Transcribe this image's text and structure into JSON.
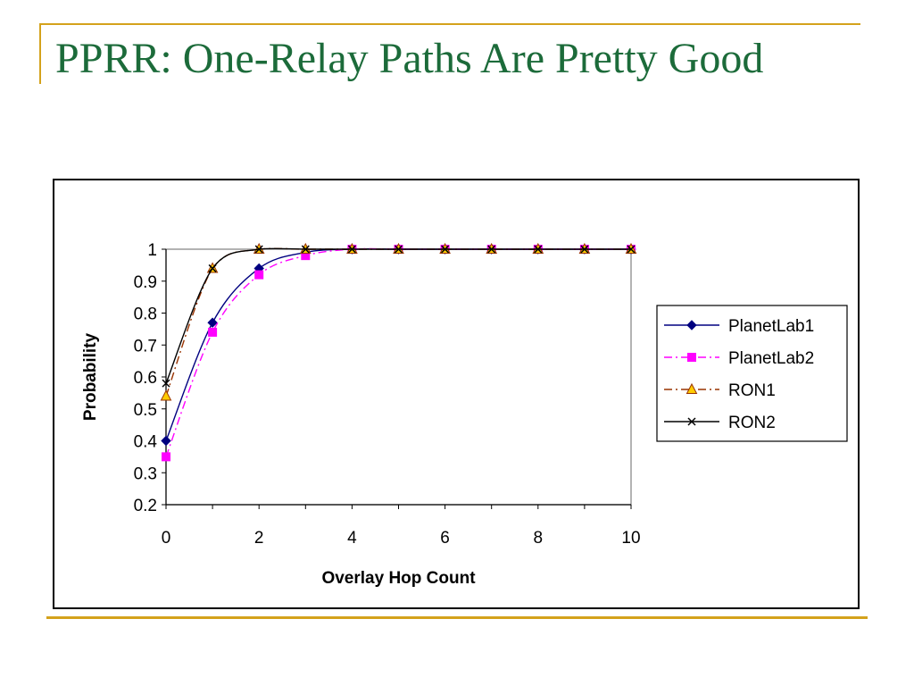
{
  "slide": {
    "title": "PPRR: One-Relay Paths Are Pretty Good"
  },
  "colors": {
    "title": "#1c6b3a",
    "rule": "#d4a21c"
  },
  "chart_data": {
    "type": "line",
    "x": [
      0,
      1,
      2,
      3,
      4,
      5,
      6,
      7,
      8,
      9,
      10
    ],
    "xlabel": "Overlay Hop Count",
    "ylabel": "Probability",
    "xlim": [
      0,
      10
    ],
    "ylim": [
      0.2,
      1
    ],
    "x_ticks": [
      0,
      2,
      4,
      6,
      8,
      10
    ],
    "y_ticks": [
      0.2,
      0.3,
      0.4,
      0.5,
      0.6,
      0.7,
      0.8,
      0.9,
      1
    ],
    "y_tick_labels": [
      "0.2",
      "0.3",
      "0.4",
      "0.5",
      "0.6",
      "0.7",
      "0.8",
      "0.9",
      "1"
    ],
    "grid": false,
    "legend_position": "right",
    "series": [
      {
        "name": "PlanetLab1",
        "values": [
          0.4,
          0.77,
          0.94,
          0.99,
          1.0,
          1.0,
          1.0,
          1.0,
          1.0,
          1.0,
          1.0
        ],
        "color": "#000080",
        "marker": "diamond",
        "line_style": "solid"
      },
      {
        "name": "PlanetLab2",
        "values": [
          0.35,
          0.74,
          0.92,
          0.98,
          1.0,
          1.0,
          1.0,
          1.0,
          1.0,
          1.0,
          1.0
        ],
        "color": "#ff00ff",
        "marker": "square",
        "line_style": "dash-dot"
      },
      {
        "name": "RON1",
        "values": [
          0.54,
          0.94,
          1.0,
          1.0,
          1.0,
          1.0,
          1.0,
          1.0,
          1.0,
          1.0,
          1.0
        ],
        "color": "#993300",
        "marker": "triangle",
        "marker_fill": "#ffcc00",
        "line_style": "dash-dot"
      },
      {
        "name": "RON2",
        "values": [
          0.58,
          0.94,
          1.0,
          1.0,
          1.0,
          1.0,
          1.0,
          1.0,
          1.0,
          1.0,
          1.0
        ],
        "color": "#000000",
        "marker": "x",
        "line_style": "solid"
      }
    ]
  }
}
